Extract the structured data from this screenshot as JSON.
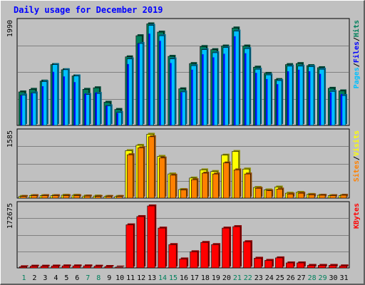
{
  "title": "Daily usage for December 2019",
  "colors": {
    "hits": "#00805c",
    "files": "#0000ff",
    "pages": "#00c0ff",
    "visits": "#ffff00",
    "sites": "#ff8000",
    "kbytes": "#ff0000",
    "weekend": "#00805c",
    "weekday": "#000000"
  },
  "legend": {
    "top": [
      "Pages",
      "/",
      "Files",
      "/",
      "Hits"
    ],
    "middle": [
      "Sites",
      "/",
      "Visits"
    ],
    "bottom": [
      "KBytes"
    ]
  },
  "chart_data": [
    {
      "type": "bar",
      "panel": "top",
      "ymax_label": "1990",
      "ylim": [
        0,
        1990
      ],
      "categories": [
        "1",
        "2",
        "3",
        "4",
        "5",
        "6",
        "7",
        "8",
        "9",
        "10",
        "11",
        "12",
        "13",
        "14",
        "15",
        "16",
        "17",
        "18",
        "19",
        "20",
        "21",
        "22",
        "23",
        "24",
        "25",
        "26",
        "27",
        "28",
        "29",
        "30",
        "31"
      ],
      "series": [
        {
          "name": "Hits",
          "values": [
            650,
            700,
            860,
            1180,
            1080,
            960,
            700,
            730,
            450,
            310,
            1330,
            1740,
            1970,
            1810,
            1340,
            710,
            1200,
            1530,
            1470,
            1540,
            1890,
            1540,
            1130,
            1010,
            890,
            1180,
            1200,
            1160,
            1120,
            720,
            670
          ]
        },
        {
          "name": "Files",
          "values": [
            580,
            620,
            760,
            1040,
            950,
            840,
            620,
            640,
            380,
            240,
            1190,
            1590,
            1780,
            1640,
            1210,
            640,
            1080,
            1380,
            1320,
            1390,
            1730,
            1400,
            1020,
            900,
            800,
            1050,
            1080,
            1050,
            1000,
            640,
            610
          ]
        },
        {
          "name": "Pages",
          "values": [
            590,
            630,
            850,
            1180,
            1080,
            960,
            600,
            620,
            380,
            250,
            1290,
            1590,
            1940,
            1740,
            1290,
            650,
            1160,
            1470,
            1410,
            1510,
            1830,
            1490,
            1090,
            980,
            870,
            1150,
            1150,
            1140,
            1090,
            660,
            580
          ]
        }
      ]
    },
    {
      "type": "bar",
      "panel": "middle",
      "ymax_label": "1585",
      "ylim": [
        0,
        1585
      ],
      "categories": [
        "1",
        "2",
        "3",
        "4",
        "5",
        "6",
        "7",
        "8",
        "9",
        "10",
        "11",
        "12",
        "13",
        "14",
        "15",
        "16",
        "17",
        "18",
        "19",
        "20",
        "21",
        "22",
        "23",
        "24",
        "25",
        "26",
        "27",
        "28",
        "29",
        "30",
        "31"
      ],
      "series": [
        {
          "name": "Visits",
          "values": [
            40,
            60,
            60,
            60,
            70,
            70,
            50,
            50,
            40,
            40,
            1160,
            1290,
            1560,
            1020,
            590,
            210,
            490,
            690,
            650,
            1050,
            1140,
            710,
            260,
            200,
            270,
            120,
            140,
            90,
            70,
            60,
            60
          ]
        },
        {
          "name": "Sites",
          "values": [
            40,
            60,
            60,
            60,
            60,
            60,
            50,
            40,
            40,
            40,
            1060,
            1230,
            1500,
            980,
            560,
            200,
            450,
            610,
            590,
            860,
            690,
            590,
            240,
            180,
            220,
            100,
            120,
            80,
            70,
            60,
            70
          ]
        }
      ]
    },
    {
      "type": "bar",
      "panel": "bottom",
      "ymax_label": "172675",
      "ylim": [
        0,
        172675
      ],
      "categories": [
        "1",
        "2",
        "3",
        "4",
        "5",
        "6",
        "7",
        "8",
        "9",
        "10",
        "11",
        "12",
        "13",
        "14",
        "15",
        "16",
        "17",
        "18",
        "19",
        "20",
        "21",
        "22",
        "23",
        "24",
        "25",
        "26",
        "27",
        "28",
        "29",
        "30",
        "31"
      ],
      "series": [
        {
          "name": "KBytes",
          "values": [
            3200,
            4800,
            4800,
            5200,
            5600,
            5600,
            5600,
            4800,
            4000,
            2400,
            120000,
            143000,
            172675,
            111000,
            65000,
            25000,
            45000,
            71000,
            65000,
            111000,
            115000,
            73000,
            27000,
            21000,
            28000,
            14000,
            14000,
            7000,
            7000,
            7000,
            5600
          ]
        }
      ]
    }
  ]
}
